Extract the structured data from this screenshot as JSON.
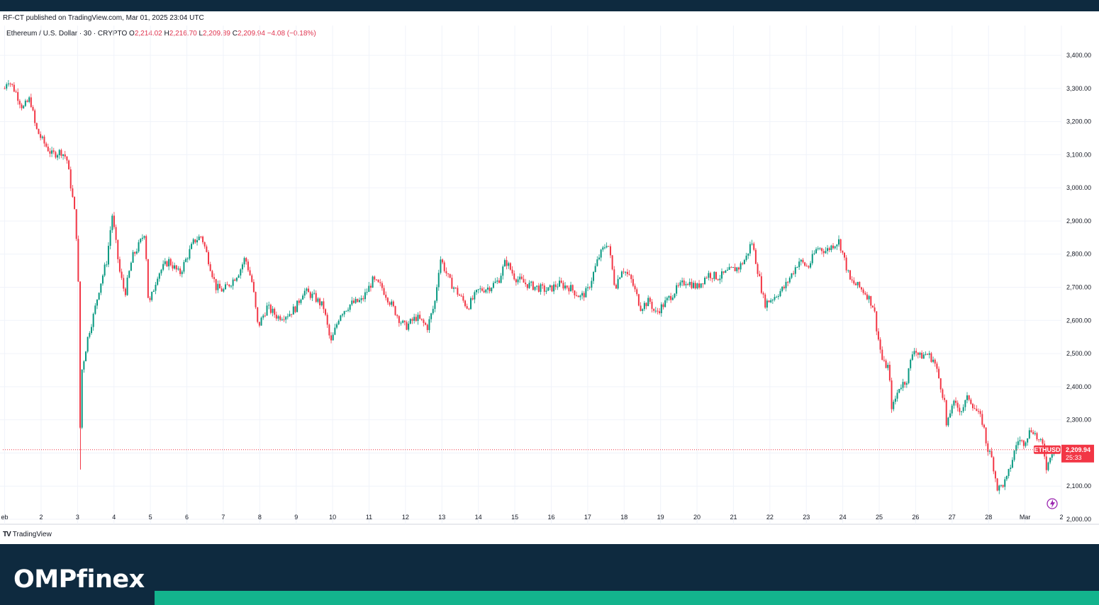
{
  "header": {
    "publish_line": "RF-CT published on TradingView.com, Mar 01, 2025 23:04 UTC"
  },
  "symbol": {
    "name": "Ethereum / U.S. Dollar · 30 · CRYPTO",
    "open_key": "O",
    "open": "2,214.02",
    "high_key": "H",
    "high": "2,216.70",
    "low_key": "L",
    "low": "2,209.89",
    "close_key": "C",
    "close": "2,209.94",
    "change": "−4.08 (−0.18%)"
  },
  "price_tag": {
    "symbol": "ETHUSD",
    "price": "2,209.94",
    "countdown": "25:33",
    "color": "#f23645"
  },
  "branding": {
    "tradingview": "TradingView",
    "tv_mark": "TV",
    "site": "OMPfinex"
  },
  "colors": {
    "up": "#089981",
    "down": "#f23645",
    "header_bg": "#0e2a3f",
    "accent": "#13b48d"
  },
  "chart_data": {
    "type": "candlestick",
    "timeframe": "30",
    "xlabel": "",
    "ylabel": "",
    "ylim": [
      1985,
      3460
    ],
    "grid": true,
    "y_ticks": [
      2000,
      2100,
      2200,
      2300,
      2400,
      2500,
      2600,
      2700,
      2800,
      2900,
      3000,
      3100,
      3200,
      3300,
      3400
    ],
    "y_tick_labels": [
      "2,000.00",
      "2,100.00",
      "2,200.00",
      "2,300.00",
      "2,400.00",
      "2,500.00",
      "2,600.00",
      "2,700.00",
      "2,800.00",
      "2,900.00",
      "3,000.00",
      "3,100.00",
      "3,200.00",
      "3,300.00",
      "3,400.00"
    ],
    "x_range": [
      0.95,
      30.0
    ],
    "x_ticks": [
      {
        "label": "eb",
        "day": 1
      },
      {
        "label": "2",
        "day": 2
      },
      {
        "label": "3",
        "day": 3
      },
      {
        "label": "4",
        "day": 4
      },
      {
        "label": "5",
        "day": 5
      },
      {
        "label": "6",
        "day": 6
      },
      {
        "label": "7",
        "day": 7
      },
      {
        "label": "8",
        "day": 8
      },
      {
        "label": "9",
        "day": 9
      },
      {
        "label": "10",
        "day": 10
      },
      {
        "label": "11",
        "day": 11
      },
      {
        "label": "12",
        "day": 12
      },
      {
        "label": "13",
        "day": 13
      },
      {
        "label": "14",
        "day": 14
      },
      {
        "label": "15",
        "day": 15
      },
      {
        "label": "16",
        "day": 16
      },
      {
        "label": "17",
        "day": 17
      },
      {
        "label": "18",
        "day": 18
      },
      {
        "label": "19",
        "day": 19
      },
      {
        "label": "20",
        "day": 20
      },
      {
        "label": "21",
        "day": 21
      },
      {
        "label": "22",
        "day": 22
      },
      {
        "label": "23",
        "day": 23
      },
      {
        "label": "24",
        "day": 24
      },
      {
        "label": "25",
        "day": 25
      },
      {
        "label": "26",
        "day": 26
      },
      {
        "label": "27",
        "day": 27
      },
      {
        "label": "28",
        "day": 28
      },
      {
        "label": "Mar",
        "day": 29
      },
      {
        "label": "2",
        "day": 30
      }
    ],
    "last_price": 2209.94,
    "series": [
      {
        "day": 1.0,
        "price": 3300
      },
      {
        "day": 1.08,
        "price": 3330
      },
      {
        "day": 1.3,
        "price": 3290
      },
      {
        "day": 1.5,
        "price": 3240
      },
      {
        "day": 1.7,
        "price": 3270
      },
      {
        "day": 1.85,
        "price": 3180
      },
      {
        "day": 2.05,
        "price": 3140
      },
      {
        "day": 2.3,
        "price": 3100
      },
      {
        "day": 2.55,
        "price": 3110
      },
      {
        "day": 2.7,
        "price": 3090
      },
      {
        "day": 2.85,
        "price": 2980
      },
      {
        "day": 2.95,
        "price": 2900
      },
      {
        "day": 3.0,
        "price": 2780
      },
      {
        "day": 3.05,
        "price": 2600
      },
      {
        "day": 3.08,
        "price": 2150
      },
      {
        "day": 3.12,
        "price": 2450
      },
      {
        "day": 3.3,
        "price": 2560
      },
      {
        "day": 3.45,
        "price": 2620
      },
      {
        "day": 3.6,
        "price": 2700
      },
      {
        "day": 3.8,
        "price": 2780
      },
      {
        "day": 3.95,
        "price": 2920
      },
      {
        "day": 4.15,
        "price": 2750
      },
      {
        "day": 4.3,
        "price": 2680
      },
      {
        "day": 4.5,
        "price": 2790
      },
      {
        "day": 4.7,
        "price": 2830
      },
      {
        "day": 4.85,
        "price": 2870
      },
      {
        "day": 4.95,
        "price": 2640
      },
      {
        "day": 5.2,
        "price": 2740
      },
      {
        "day": 5.5,
        "price": 2780
      },
      {
        "day": 5.8,
        "price": 2740
      },
      {
        "day": 6.0,
        "price": 2790
      },
      {
        "day": 6.2,
        "price": 2840
      },
      {
        "day": 6.4,
        "price": 2855
      },
      {
        "day": 6.6,
        "price": 2780
      },
      {
        "day": 6.8,
        "price": 2700
      },
      {
        "day": 7.0,
        "price": 2690
      },
      {
        "day": 7.25,
        "price": 2720
      },
      {
        "day": 7.45,
        "price": 2750
      },
      {
        "day": 7.6,
        "price": 2790
      },
      {
        "day": 7.8,
        "price": 2710
      },
      {
        "day": 7.95,
        "price": 2580
      },
      {
        "day": 8.2,
        "price": 2640
      },
      {
        "day": 8.5,
        "price": 2610
      },
      {
        "day": 8.8,
        "price": 2620
      },
      {
        "day": 9.0,
        "price": 2640
      },
      {
        "day": 9.2,
        "price": 2690
      },
      {
        "day": 9.5,
        "price": 2670
      },
      {
        "day": 9.75,
        "price": 2640
      },
      {
        "day": 9.95,
        "price": 2530
      },
      {
        "day": 10.2,
        "price": 2620
      },
      {
        "day": 10.5,
        "price": 2650
      },
      {
        "day": 10.8,
        "price": 2660
      },
      {
        "day": 11.1,
        "price": 2720
      },
      {
        "day": 11.35,
        "price": 2700
      },
      {
        "day": 11.6,
        "price": 2650
      },
      {
        "day": 11.85,
        "price": 2600
      },
      {
        "day": 12.0,
        "price": 2580
      },
      {
        "day": 12.3,
        "price": 2610
      },
      {
        "day": 12.6,
        "price": 2580
      },
      {
        "day": 12.8,
        "price": 2650
      },
      {
        "day": 12.95,
        "price": 2790
      },
      {
        "day": 13.2,
        "price": 2720
      },
      {
        "day": 13.45,
        "price": 2680
      },
      {
        "day": 13.7,
        "price": 2640
      },
      {
        "day": 14.0,
        "price": 2690
      },
      {
        "day": 14.3,
        "price": 2700
      },
      {
        "day": 14.55,
        "price": 2720
      },
      {
        "day": 14.75,
        "price": 2780
      },
      {
        "day": 15.0,
        "price": 2730
      },
      {
        "day": 15.3,
        "price": 2710
      },
      {
        "day": 15.6,
        "price": 2700
      },
      {
        "day": 15.9,
        "price": 2690
      },
      {
        "day": 16.2,
        "price": 2710
      },
      {
        "day": 16.5,
        "price": 2700
      },
      {
        "day": 16.8,
        "price": 2670
      },
      {
        "day": 17.0,
        "price": 2690
      },
      {
        "day": 17.3,
        "price": 2790
      },
      {
        "day": 17.55,
        "price": 2840
      },
      {
        "day": 17.75,
        "price": 2700
      },
      {
        "day": 17.95,
        "price": 2760
      },
      {
        "day": 18.2,
        "price": 2720
      },
      {
        "day": 18.45,
        "price": 2640
      },
      {
        "day": 18.7,
        "price": 2660
      },
      {
        "day": 18.85,
        "price": 2620
      },
      {
        "day": 19.1,
        "price": 2650
      },
      {
        "day": 19.4,
        "price": 2690
      },
      {
        "day": 19.7,
        "price": 2720
      },
      {
        "day": 20.0,
        "price": 2700
      },
      {
        "day": 20.3,
        "price": 2740
      },
      {
        "day": 20.6,
        "price": 2730
      },
      {
        "day": 20.9,
        "price": 2750
      },
      {
        "day": 21.15,
        "price": 2760
      },
      {
        "day": 21.35,
        "price": 2790
      },
      {
        "day": 21.5,
        "price": 2840
      },
      {
        "day": 21.65,
        "price": 2760
      },
      {
        "day": 21.85,
        "price": 2650
      },
      {
        "day": 22.1,
        "price": 2670
      },
      {
        "day": 22.4,
        "price": 2700
      },
      {
        "day": 22.6,
        "price": 2740
      },
      {
        "day": 22.8,
        "price": 2780
      },
      {
        "day": 23.05,
        "price": 2760
      },
      {
        "day": 23.3,
        "price": 2820
      },
      {
        "day": 23.55,
        "price": 2810
      },
      {
        "day": 23.75,
        "price": 2830
      },
      {
        "day": 23.9,
        "price": 2840
      },
      {
        "day": 24.05,
        "price": 2780
      },
      {
        "day": 24.2,
        "price": 2720
      },
      {
        "day": 24.45,
        "price": 2700
      },
      {
        "day": 24.65,
        "price": 2680
      },
      {
        "day": 24.85,
        "price": 2640
      },
      {
        "day": 24.95,
        "price": 2560
      },
      {
        "day": 25.1,
        "price": 2470
      },
      {
        "day": 25.25,
        "price": 2460
      },
      {
        "day": 25.35,
        "price": 2330
      },
      {
        "day": 25.55,
        "price": 2400
      },
      {
        "day": 25.75,
        "price": 2420
      },
      {
        "day": 25.95,
        "price": 2520
      },
      {
        "day": 26.1,
        "price": 2490
      },
      {
        "day": 26.3,
        "price": 2500
      },
      {
        "day": 26.5,
        "price": 2480
      },
      {
        "day": 26.65,
        "price": 2420
      },
      {
        "day": 26.8,
        "price": 2350
      },
      {
        "day": 26.85,
        "price": 2270
      },
      {
        "day": 27.0,
        "price": 2350
      },
      {
        "day": 27.25,
        "price": 2330
      },
      {
        "day": 27.45,
        "price": 2370
      },
      {
        "day": 27.65,
        "price": 2330
      },
      {
        "day": 27.85,
        "price": 2290
      },
      {
        "day": 27.95,
        "price": 2220
      },
      {
        "day": 28.1,
        "price": 2180
      },
      {
        "day": 28.25,
        "price": 2090
      },
      {
        "day": 28.35,
        "price": 2100
      },
      {
        "day": 28.5,
        "price": 2120
      },
      {
        "day": 28.65,
        "price": 2180
      },
      {
        "day": 28.8,
        "price": 2240
      },
      {
        "day": 28.95,
        "price": 2230
      },
      {
        "day": 29.1,
        "price": 2260
      },
      {
        "day": 29.2,
        "price": 2275
      },
      {
        "day": 29.35,
        "price": 2240
      },
      {
        "day": 29.5,
        "price": 2220
      },
      {
        "day": 29.6,
        "price": 2150
      },
      {
        "day": 29.7,
        "price": 2200
      },
      {
        "day": 29.85,
        "price": 2215
      },
      {
        "day": 29.95,
        "price": 2210
      }
    ]
  }
}
